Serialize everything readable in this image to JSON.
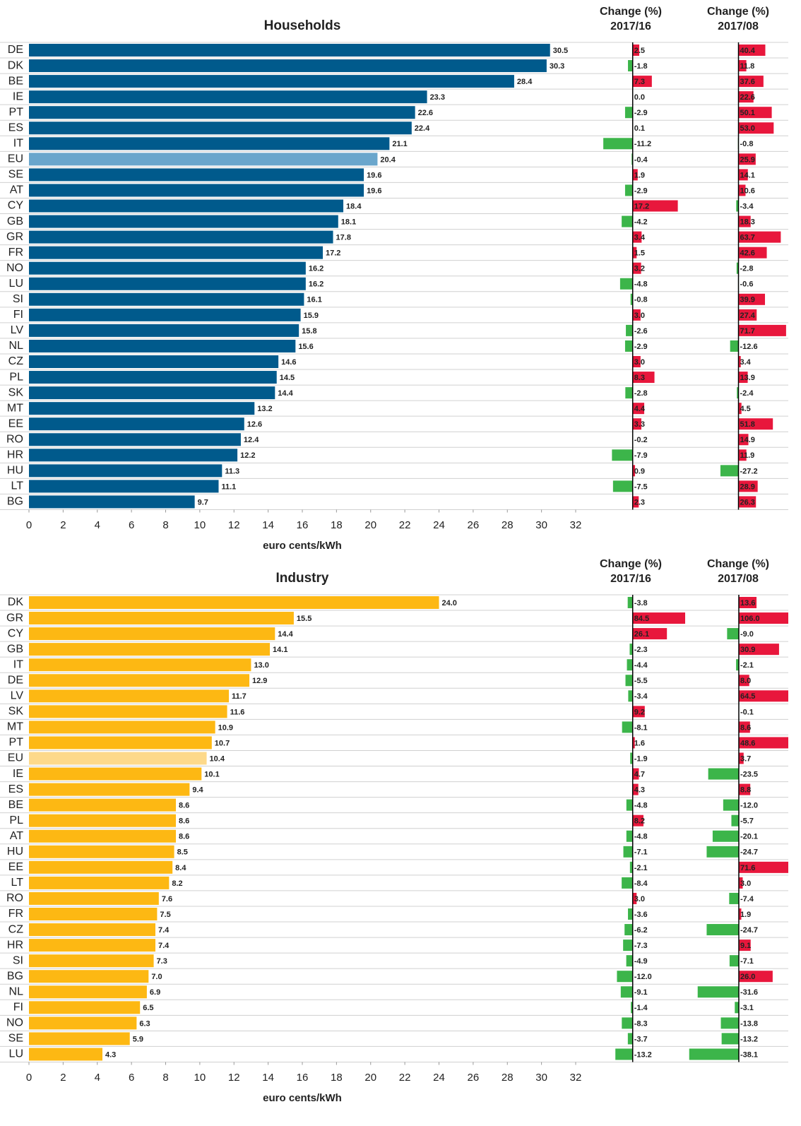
{
  "chart_data": [
    {
      "type": "bar",
      "title": "Households",
      "xlabel": "euro cents/kWh",
      "categories": [
        "DE",
        "DK",
        "BE",
        "IE",
        "PT",
        "ES",
        "IT",
        "EU",
        "SE",
        "AT",
        "CY",
        "GB",
        "GR",
        "FR",
        "NO",
        "LU",
        "SI",
        "FI",
        "LV",
        "NL",
        "CZ",
        "PL",
        "SK",
        "MT",
        "EE",
        "RO",
        "HR",
        "HU",
        "LT",
        "BG"
      ],
      "values": [
        30.5,
        30.3,
        28.4,
        23.3,
        22.6,
        22.4,
        21.1,
        20.4,
        19.6,
        19.6,
        18.4,
        18.1,
        17.8,
        17.2,
        16.2,
        16.2,
        16.1,
        15.9,
        15.8,
        15.6,
        14.6,
        14.5,
        14.4,
        13.2,
        12.6,
        12.4,
        12.2,
        11.3,
        11.1,
        9.7
      ],
      "value_labels": [
        "30.5",
        "30.3",
        "28.4",
        "23.3",
        "22.6",
        "22.4",
        "21.1",
        "20.4",
        "19.6",
        "19.6",
        "18.4",
        "18.1",
        "17.8",
        "17.2",
        "16.2",
        "16.2",
        "16.1",
        "15.9",
        "15.8",
        "15.6",
        "14.6",
        "14.5",
        "14.4",
        "13.2",
        "12.6",
        "12.4",
        "12.2",
        "11.3",
        "11.1",
        "9.7"
      ],
      "color": "#005a8c",
      "highlight_category": "EU",
      "highlight_color": "#6aa6cc",
      "xlim": [
        0,
        32
      ],
      "xticks": [
        0,
        2,
        4,
        6,
        8,
        10,
        12,
        14,
        16,
        18,
        20,
        22,
        24,
        26,
        28,
        30,
        32
      ],
      "change_panels": [
        {
          "header": [
            "Change (%)",
            "2017/16"
          ],
          "xlim": [
            -15,
            20
          ],
          "positive_color": "#e8173c",
          "negative_color": "#3cb54a",
          "values": [
            2.5,
            -1.8,
            7.3,
            0.0,
            -2.9,
            0.1,
            -11.2,
            -0.4,
            1.9,
            -2.9,
            17.2,
            -4.2,
            3.4,
            1.5,
            3.2,
            -4.8,
            -0.8,
            3.0,
            -2.6,
            -2.9,
            3.0,
            8.3,
            -2.8,
            4.4,
            3.3,
            -0.2,
            -7.9,
            0.9,
            -7.5,
            2.3
          ],
          "value_labels": [
            "2.5",
            "-1.8",
            "7.3",
            "0.0",
            "-2.9",
            "0.1",
            "-11.2",
            "-0.4",
            "1.9",
            "-2.9",
            "17.2",
            "-4.2",
            "3.4",
            "1.5",
            "3.2",
            "-4.8",
            "-0.8",
            "3.0",
            "-2.6",
            "-2.9",
            "3.0",
            "8.3",
            "-2.8",
            "4.4",
            "3.3",
            "-0.2",
            "-7.9",
            "0.9",
            "-7.5",
            "2.3"
          ]
        },
        {
          "header": [
            "Change (%)",
            "2017/08"
          ],
          "xlim": [
            -75,
            75
          ],
          "positive_color": "#e8173c",
          "negative_color": "#3cb54a",
          "values": [
            40.4,
            11.8,
            37.6,
            22.6,
            50.1,
            53.0,
            -0.8,
            25.9,
            14.1,
            10.6,
            -3.4,
            18.3,
            63.7,
            42.6,
            -2.8,
            -0.6,
            39.9,
            27.4,
            71.7,
            -12.6,
            3.4,
            13.9,
            -2.4,
            4.5,
            51.8,
            14.9,
            11.9,
            -27.2,
            28.9,
            26.3
          ],
          "value_labels": [
            "40.4",
            "11.8",
            "37.6",
            "22.6",
            "50.1",
            "53.0",
            "-0.8",
            "25.9",
            "14.1",
            "10.6",
            "-3.4",
            "18.3",
            "63.7",
            "42.6",
            "-2.8",
            "-0.6",
            "39.9",
            "27.4",
            "71.7",
            "-12.6",
            "3.4",
            "13.9",
            "-2.4",
            "4.5",
            "51.8",
            "14.9",
            "11.9",
            "-27.2",
            "28.9",
            "26.3"
          ]
        }
      ]
    },
    {
      "type": "bar",
      "title": "Industry",
      "xlabel": "euro cents/kWh",
      "categories": [
        "DK",
        "GR",
        "CY",
        "GB",
        "IT",
        "DE",
        "LV",
        "SK",
        "MT",
        "PT",
        "EU",
        "IE",
        "ES",
        "BE",
        "PL",
        "AT",
        "HU",
        "EE",
        "LT",
        "RO",
        "FR",
        "CZ",
        "HR",
        "SI",
        "BG",
        "NL",
        "FI",
        "NO",
        "SE",
        "LU"
      ],
      "values": [
        24.0,
        15.5,
        14.4,
        14.1,
        13.0,
        12.9,
        11.7,
        11.6,
        10.9,
        10.7,
        10.4,
        10.1,
        9.4,
        8.6,
        8.6,
        8.6,
        8.5,
        8.4,
        8.2,
        7.6,
        7.5,
        7.4,
        7.4,
        7.3,
        7.0,
        6.9,
        6.5,
        6.3,
        5.9,
        4.3
      ],
      "value_labels": [
        "24.0",
        "15.5",
        "14.4",
        "14.1",
        "13.0",
        "12.9",
        "11.7",
        "11.6",
        "10.9",
        "10.7",
        "10.4",
        "10.1",
        "9.4",
        "8.6",
        "8.6",
        "8.6",
        "8.5",
        "8.4",
        "8.2",
        "7.6",
        "7.5",
        "7.4",
        "7.4",
        "7.3",
        "7.0",
        "6.9",
        "6.5",
        "6.3",
        "5.9",
        "4.3"
      ],
      "color": "#fdb813",
      "highlight_category": "EU",
      "highlight_color": "#fdd98a",
      "xlim": [
        0,
        32
      ],
      "xticks": [
        0,
        2,
        4,
        6,
        8,
        10,
        12,
        14,
        16,
        18,
        20,
        22,
        24,
        26,
        28,
        30,
        32
      ],
      "change_panels": [
        {
          "header": [
            "Change (%)",
            "2017/16"
          ],
          "xlim": [
            -30,
            40
          ],
          "positive_color": "#e8173c",
          "negative_color": "#3cb54a",
          "values": [
            -3.8,
            84.5,
            26.1,
            -2.3,
            -4.4,
            -5.5,
            -3.4,
            9.2,
            -8.1,
            1.6,
            -1.9,
            4.7,
            4.3,
            -4.8,
            8.2,
            -4.8,
            -7.1,
            -2.1,
            -8.4,
            3.0,
            -3.6,
            -6.2,
            -7.3,
            -4.9,
            -12.0,
            -9.1,
            -1.4,
            -8.3,
            -3.7,
            -13.2
          ],
          "value_labels": [
            "-3.8",
            "84.5",
            "26.1",
            "-2.3",
            "-4.4",
            "-5.5",
            "-3.4",
            "9.2",
            "-8.1",
            "1.6",
            "-1.9",
            "4.7",
            "4.3",
            "-4.8",
            "8.2",
            "-4.8",
            "-7.1",
            "-2.1",
            "-8.4",
            "3.0",
            "-3.6",
            "-6.2",
            "-7.3",
            "-4.9",
            "-12.0",
            "-9.1",
            "-1.4",
            "-8.3",
            "-3.7",
            "-13.2"
          ]
        },
        {
          "header": [
            "Change (%)",
            "2017/08"
          ],
          "xlim": [
            -38.5,
            38
          ],
          "positive_color": "#e8173c",
          "negative_color": "#3cb54a",
          "values": [
            13.6,
            106.0,
            -9.0,
            30.9,
            -2.1,
            8.0,
            64.5,
            -0.1,
            8.6,
            48.6,
            3.7,
            -23.5,
            8.8,
            -12.0,
            -5.7,
            -20.1,
            -24.7,
            71.6,
            3.0,
            -7.4,
            1.9,
            -24.7,
            9.1,
            -7.1,
            26.0,
            -31.6,
            -3.1,
            -13.8,
            -13.2,
            -38.1
          ],
          "value_labels": [
            "13.6",
            "106.0",
            "-9.0",
            "30.9",
            "-2.1",
            "8.0",
            "64.5",
            "-0.1",
            "8.6",
            "48.6",
            "3.7",
            "-23.5",
            "8.8",
            "-12.0",
            "-5.7",
            "-20.1",
            "-24.7",
            "71.6",
            "3.0",
            "-7.4",
            "1.9",
            "-24.7",
            "9.1",
            "-7.1",
            "26.0",
            "-31.6",
            "-3.1",
            "-13.8",
            "-13.2",
            "-38.1"
          ]
        }
      ]
    }
  ]
}
